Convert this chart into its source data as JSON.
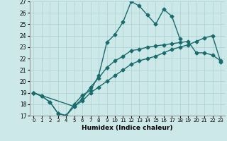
{
  "xlabel": "Humidex (Indice chaleur)",
  "xlim": [
    -0.5,
    23.5
  ],
  "ylim": [
    17,
    27
  ],
  "xticks": [
    0,
    1,
    2,
    3,
    4,
    5,
    6,
    7,
    8,
    9,
    10,
    11,
    12,
    13,
    14,
    15,
    16,
    17,
    18,
    19,
    20,
    21,
    22,
    23
  ],
  "yticks": [
    17,
    18,
    19,
    20,
    21,
    22,
    23,
    24,
    25,
    26,
    27
  ],
  "background_color": "#cde8e8",
  "grid_color": "#b0d4d4",
  "line_color": "#1a6b6b",
  "line1_x": [
    0,
    1,
    2,
    3,
    4,
    5,
    6,
    7,
    8,
    9,
    10,
    11,
    12,
    13,
    14,
    15,
    16,
    17,
    18
  ],
  "line1_y": [
    19.0,
    18.7,
    18.2,
    17.2,
    17.0,
    18.0,
    18.8,
    19.2,
    20.5,
    23.4,
    24.1,
    25.2,
    27.0,
    26.6,
    25.8,
    25.0,
    26.3,
    25.7,
    23.7
  ],
  "line2_x": [
    0,
    1,
    2,
    3,
    4,
    5,
    6,
    7,
    8,
    9,
    10,
    11,
    12,
    13,
    14,
    15,
    16,
    17,
    18,
    19,
    20,
    21,
    22,
    23
  ],
  "line2_y": [
    19.0,
    18.7,
    18.2,
    17.2,
    17.0,
    17.8,
    18.5,
    19.5,
    20.3,
    21.2,
    21.8,
    22.2,
    22.7,
    22.8,
    23.0,
    23.1,
    23.2,
    23.3,
    23.4,
    23.5,
    22.5,
    22.5,
    22.3,
    21.8
  ],
  "line3_x": [
    0,
    5,
    6,
    7,
    8,
    9,
    10,
    11,
    12,
    13,
    14,
    15,
    16,
    17,
    18,
    19,
    20,
    21,
    22,
    23
  ],
  "line3_y": [
    19.0,
    17.8,
    18.3,
    19.0,
    19.5,
    20.0,
    20.5,
    21.0,
    21.5,
    21.8,
    22.0,
    22.2,
    22.5,
    22.8,
    23.0,
    23.2,
    23.5,
    23.8,
    24.0,
    21.7
  ],
  "marker": "D",
  "markersize": 2.5,
  "linewidth": 1.0
}
